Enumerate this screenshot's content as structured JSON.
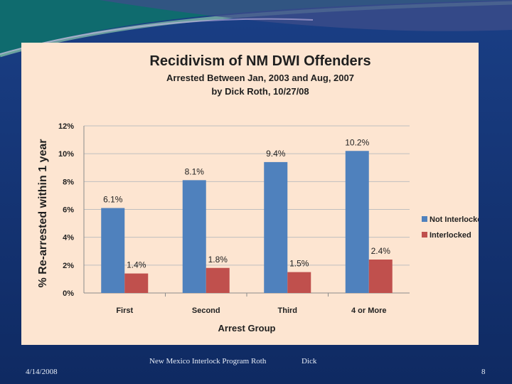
{
  "chart_data": {
    "type": "bar",
    "title": "Recidivism of NM DWI Offenders",
    "subtitle_lines": [
      "Arrested Between Jan, 2003 and Aug, 2007",
      "by Dick Roth, 10/27/08"
    ],
    "xlabel": "Arrest Group",
    "ylabel": "% Re-arrested within 1 year",
    "categories": [
      "First",
      "Second",
      "Third",
      "4 or More"
    ],
    "series": [
      {
        "name": "Not Interlocked",
        "values": [
          6.1,
          8.1,
          9.4,
          10.2
        ],
        "labels": [
          "6.1%",
          "8.1%",
          "9.4%",
          "10.2%"
        ],
        "color": "#4f81bd"
      },
      {
        "name": "Interlocked",
        "values": [
          1.4,
          1.8,
          1.5,
          2.4
        ],
        "labels": [
          "1.4%",
          "1.8%",
          "1.5%",
          "2.4%"
        ],
        "color": "#c0504d"
      }
    ],
    "ylim": [
      0,
      12
    ],
    "yticks": [
      0,
      2,
      4,
      6,
      8,
      10,
      12
    ],
    "ytick_labels": [
      "0%",
      "2%",
      "4%",
      "6%",
      "8%",
      "10%",
      "12%"
    ],
    "grid": true,
    "legend_position": "right"
  },
  "footer": {
    "date": "4/14/2008",
    "center": "New Mexico Interlock Program Roth",
    "author": "Dick",
    "page": "8"
  },
  "colors": {
    "slide_background": "#1a3f86",
    "chart_background": "#fde5d1",
    "gridline": "#bfbfbf"
  }
}
